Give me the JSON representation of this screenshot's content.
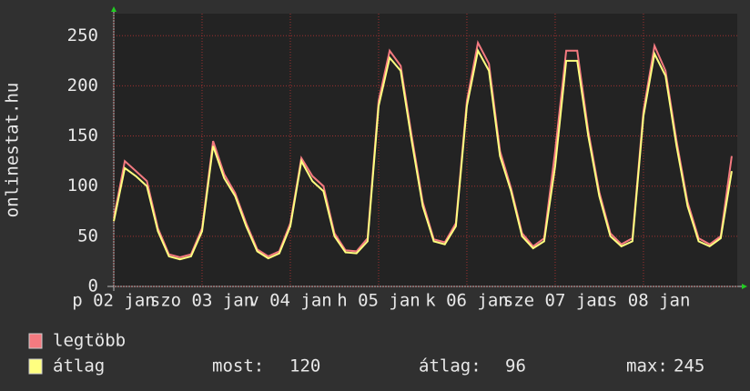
{
  "chart_data": {
    "type": "line",
    "ylabel": "onlinestat.hu",
    "x": [
      0,
      3,
      6,
      9,
      12,
      15,
      18,
      21,
      24,
      27,
      30,
      33,
      36,
      39,
      42,
      45,
      48,
      51,
      54,
      57,
      60,
      63,
      66,
      69,
      72,
      75,
      78,
      81,
      84,
      87,
      90,
      93,
      96,
      99,
      102,
      105,
      108,
      111,
      114,
      117,
      120,
      123,
      126,
      129,
      132,
      135,
      138,
      141,
      144,
      147,
      150,
      153,
      156,
      159,
      162,
      165,
      168
    ],
    "xlim": [
      0,
      169.5
    ],
    "xticks": [
      {
        "value": 0,
        "label": "p 02 jan"
      },
      {
        "value": 24,
        "label": "szo 03 jan"
      },
      {
        "value": 48,
        "label": "v 04 jan"
      },
      {
        "value": 72,
        "label": "h 05 jan"
      },
      {
        "value": 96,
        "label": "k 06 jan"
      },
      {
        "value": 120,
        "label": "sze 07 jan"
      },
      {
        "value": 144,
        "label": "cs 08 jan"
      }
    ],
    "ylim": [
      0,
      272
    ],
    "yticks": [
      0,
      50,
      100,
      150,
      200,
      250
    ],
    "grid": true,
    "series": [
      {
        "name": "legtöbb",
        "color": "#f47a80",
        "values": [
          68,
          125,
          115,
          105,
          58,
          32,
          29,
          32,
          58,
          145,
          112,
          93,
          63,
          37,
          30,
          35,
          63,
          128,
          110,
          100,
          53,
          36,
          35,
          48,
          185,
          235,
          220,
          150,
          84,
          47,
          44,
          63,
          185,
          243,
          222,
          135,
          98,
          53,
          40,
          48,
          135,
          235,
          235,
          155,
          94,
          53,
          42,
          48,
          175,
          240,
          215,
          145,
          84,
          48,
          42,
          50,
          130
        ]
      },
      {
        "name": "átlag",
        "color": "#ffff80",
        "values": [
          65,
          118,
          110,
          100,
          55,
          30,
          27,
          30,
          55,
          140,
          108,
          90,
          60,
          35,
          28,
          33,
          60,
          125,
          105,
          95,
          50,
          34,
          33,
          45,
          180,
          228,
          215,
          145,
          80,
          45,
          42,
          60,
          180,
          235,
          215,
          130,
          95,
          50,
          38,
          45,
          120,
          225,
          225,
          150,
          90,
          50,
          40,
          45,
          170,
          232,
          210,
          140,
          80,
          45,
          40,
          48,
          115
        ]
      }
    ],
    "stats": [
      {
        "label": "most:",
        "value": 120
      },
      {
        "label": "átlag:",
        "value": 96
      },
      {
        "label": "max:",
        "value": 245
      }
    ]
  }
}
